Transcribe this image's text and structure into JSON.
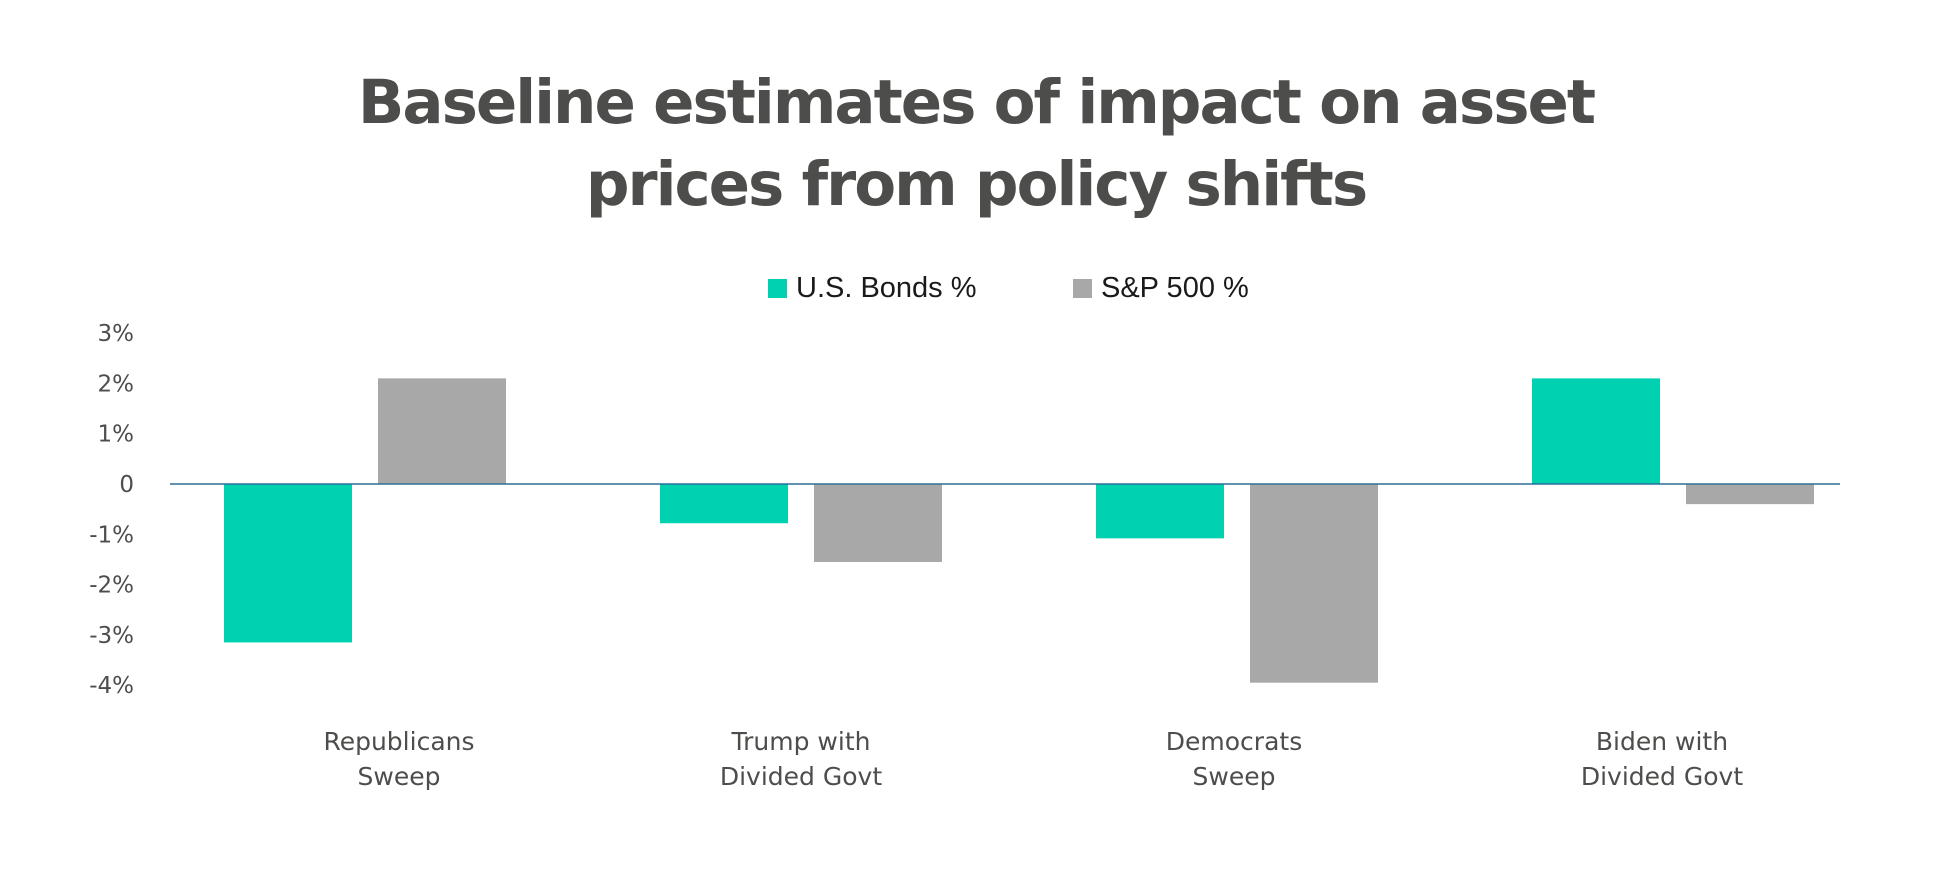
{
  "chart_data": {
    "type": "bar",
    "title": "Baseline estimates of impact on asset prices from policy shifts",
    "title_lines": [
      "Baseline estimates of impact on asset",
      "prices from policy shifts"
    ],
    "categories": [
      [
        "Republicans",
        "Sweep"
      ],
      [
        "Trump with",
        "Divided Govt"
      ],
      [
        "Democrats",
        "Sweep"
      ],
      [
        "Biden with",
        "Divided Govt"
      ]
    ],
    "series": [
      {
        "name": "U.S. Bonds %",
        "color": "#00d1b0",
        "values": [
          -3.15,
          -0.78,
          -1.08,
          2.1
        ]
      },
      {
        "name": "S&P 500 %",
        "color": "#a8a8a8",
        "values": [
          2.1,
          -1.55,
          -3.95,
          -0.4
        ]
      }
    ],
    "ylim": [
      -4,
      3
    ],
    "yticks": [
      3,
      2,
      1,
      0,
      -1,
      -2,
      -3,
      -4
    ],
    "ytick_labels": [
      "3%",
      "2%",
      "1%",
      "0",
      "-1%",
      "-2%",
      "-3%",
      "-4%"
    ],
    "xlabel": "",
    "ylabel": "",
    "legend_position": "top-center",
    "grid": false,
    "baseline_color": "#2d6f98"
  }
}
